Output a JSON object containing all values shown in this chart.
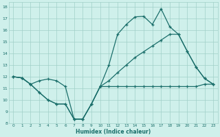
{
  "xlabel": "Humidex (Indice chaleur)",
  "bg_color": "#cff0eb",
  "grid_color": "#a0cfc8",
  "line_color": "#1a6e6a",
  "xlim": [
    -0.5,
    23.5
  ],
  "ylim": [
    8,
    18.4
  ],
  "xticks": [
    0,
    1,
    2,
    3,
    4,
    5,
    6,
    7,
    8,
    9,
    10,
    11,
    12,
    13,
    14,
    15,
    16,
    17,
    18,
    19,
    20,
    21,
    22,
    23
  ],
  "yticks": [
    8,
    9,
    10,
    11,
    12,
    13,
    14,
    15,
    16,
    17,
    18
  ],
  "line1_x": [
    0,
    1,
    2,
    3,
    4,
    5,
    6,
    7,
    8,
    9,
    10,
    11,
    12,
    13,
    14,
    15,
    16,
    17,
    18,
    19,
    20,
    21,
    22,
    23
  ],
  "line1_y": [
    12.0,
    11.9,
    11.35,
    10.65,
    10.0,
    9.65,
    9.65,
    8.35,
    8.35,
    9.65,
    11.15,
    11.15,
    11.15,
    11.15,
    11.15,
    11.15,
    11.15,
    11.15,
    11.15,
    11.15,
    11.15,
    11.15,
    11.35,
    11.35
  ],
  "line2_x": [
    0,
    1,
    2,
    3,
    4,
    5,
    6,
    7,
    8,
    9,
    10,
    11,
    12,
    13,
    14,
    15,
    16,
    17,
    18,
    19,
    20,
    21,
    22,
    23
  ],
  "line2_y": [
    12.0,
    11.9,
    11.35,
    10.65,
    10.0,
    9.65,
    9.65,
    8.35,
    8.35,
    9.65,
    11.15,
    13.0,
    15.65,
    16.5,
    17.15,
    17.2,
    16.5,
    17.85,
    16.3,
    15.65,
    14.2,
    12.85,
    11.85,
    11.35
  ],
  "line3_x": [
    0,
    1,
    2,
    3,
    4,
    5,
    6,
    7,
    8,
    9,
    10,
    11,
    12,
    13,
    14,
    15,
    16,
    17,
    18,
    19,
    20,
    21,
    22,
    23
  ],
  "line3_y": [
    12.0,
    11.9,
    11.35,
    11.65,
    11.8,
    11.65,
    11.15,
    8.35,
    8.35,
    9.65,
    11.15,
    11.65,
    12.35,
    13.0,
    13.65,
    14.15,
    14.65,
    15.15,
    15.65,
    15.65,
    14.2,
    12.85,
    11.85,
    11.35
  ]
}
